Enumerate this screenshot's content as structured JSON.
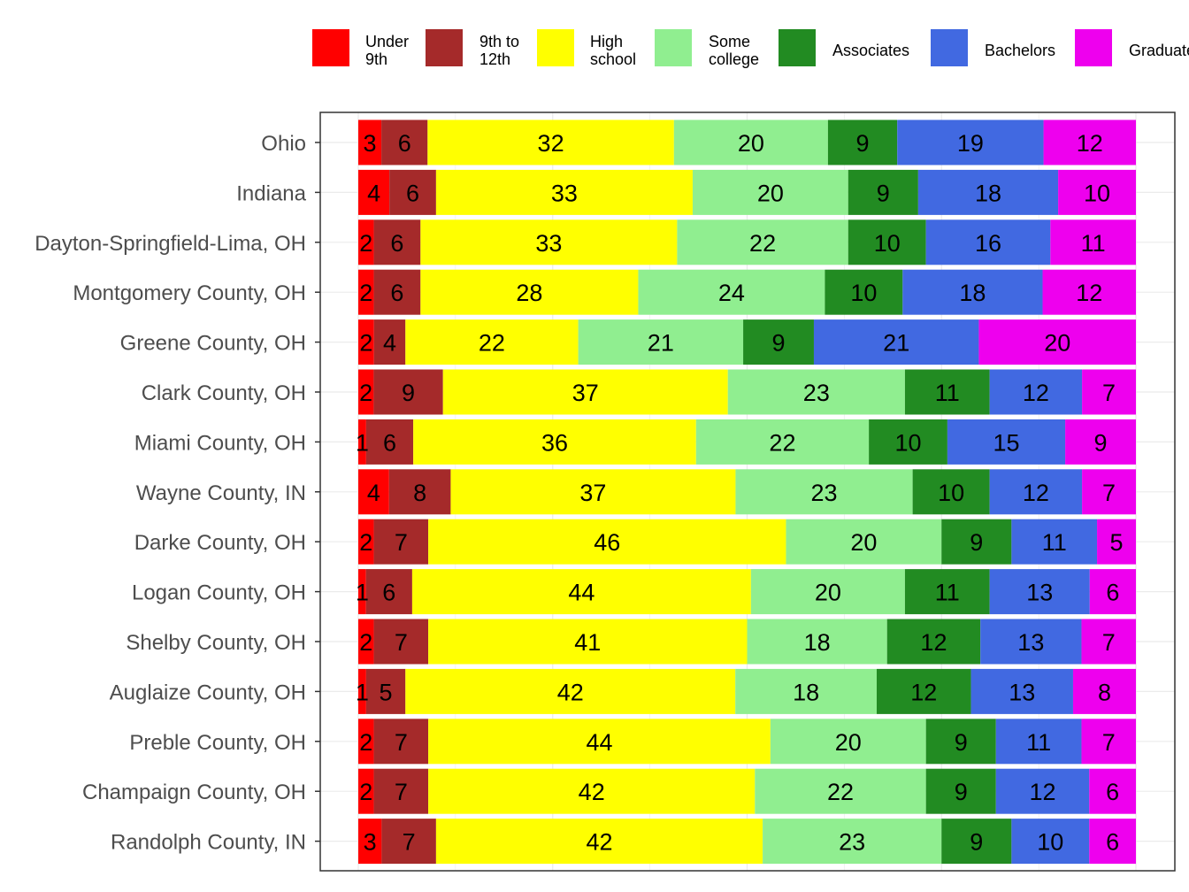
{
  "chart_data": {
    "type": "bar",
    "orientation": "horizontal",
    "stacked": "percent",
    "grid": true,
    "legend_position": "top",
    "categories": [
      "Ohio",
      "Indiana",
      "Dayton-Springfield-Lima, OH",
      "Montgomery County, OH",
      "Greene County, OH",
      "Clark County, OH",
      "Miami County, OH",
      "Wayne County, IN",
      "Darke County, OH",
      "Logan County, OH",
      "Shelby County, OH",
      "Auglaize County, OH",
      "Preble County, OH",
      "Champaign County, OH",
      "Randolph County, IN"
    ],
    "series": [
      {
        "name": "Under 9th",
        "legend_lines": [
          "Under",
          "9th"
        ],
        "color": "#ff0000",
        "values": [
          3,
          4,
          2,
          2,
          2,
          2,
          1,
          4,
          2,
          1,
          2,
          1,
          2,
          2,
          3
        ]
      },
      {
        "name": "9th to 12th",
        "legend_lines": [
          "9th to",
          "12th"
        ],
        "color": "#a52a2a",
        "values": [
          6,
          6,
          6,
          6,
          4,
          9,
          6,
          8,
          7,
          6,
          7,
          5,
          7,
          7,
          7
        ]
      },
      {
        "name": "High school",
        "legend_lines": [
          "High",
          "school"
        ],
        "color": "#ffff00",
        "values": [
          32,
          33,
          33,
          28,
          22,
          37,
          36,
          37,
          46,
          44,
          41,
          42,
          44,
          42,
          42
        ]
      },
      {
        "name": "Some college",
        "legend_lines": [
          "Some",
          "college"
        ],
        "color": "#90ee90",
        "values": [
          20,
          20,
          22,
          24,
          21,
          23,
          22,
          23,
          20,
          20,
          18,
          18,
          20,
          22,
          23
        ]
      },
      {
        "name": "Associates",
        "legend_lines": [
          "Associates"
        ],
        "color": "#228b22",
        "values": [
          9,
          9,
          10,
          10,
          9,
          11,
          10,
          10,
          9,
          11,
          12,
          12,
          9,
          9,
          9
        ]
      },
      {
        "name": "Bachelors",
        "legend_lines": [
          "Bachelors"
        ],
        "color": "#4169e1",
        "values": [
          19,
          18,
          16,
          18,
          21,
          12,
          15,
          12,
          11,
          13,
          13,
          13,
          11,
          12,
          10
        ]
      },
      {
        "name": "Graduate",
        "legend_lines": [
          "Graduate"
        ],
        "color": "#ee00ee",
        "values": [
          12,
          10,
          11,
          12,
          20,
          7,
          9,
          7,
          5,
          6,
          7,
          8,
          7,
          6,
          6
        ]
      }
    ]
  }
}
